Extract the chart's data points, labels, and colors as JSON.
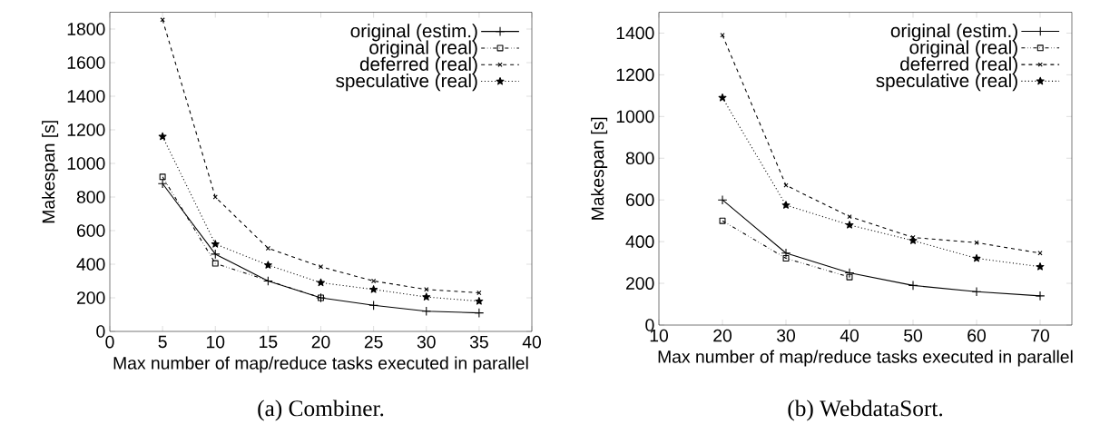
{
  "chart_data": [
    {
      "type": "line",
      "xlabel": "Max number of map/reduce tasks executed in parallel",
      "ylabel": "Makespan [s]",
      "annotations": [
        "(a) Combiner."
      ],
      "xlim": [
        0,
        40
      ],
      "ylim": [
        0,
        1900
      ],
      "xticks": [
        0,
        5,
        10,
        15,
        20,
        25,
        30,
        35,
        40
      ],
      "yticks": [
        0,
        200,
        400,
        600,
        800,
        1000,
        1200,
        1400,
        1600,
        1800
      ],
      "legend": "top right",
      "grid": false,
      "series": [
        {
          "name": "original (estim.)",
          "color": "#000000",
          "marker": "plus",
          "line_style": "solid",
          "x": [
            5,
            10,
            15,
            20,
            25,
            30,
            35
          ],
          "values": [
            880,
            460,
            300,
            200,
            155,
            120,
            110
          ]
        },
        {
          "name": "original (real)",
          "color": "#000000",
          "marker": "square",
          "line_style": "dashdotdotted",
          "x": [
            5,
            10,
            20
          ],
          "values": [
            920,
            405,
            200
          ]
        },
        {
          "name": "deferred (real)",
          "color": "#000000",
          "marker": "cross",
          "line_style": "dashed",
          "x": [
            5,
            10,
            15,
            20,
            25,
            30,
            35
          ],
          "values": [
            1855,
            800,
            495,
            385,
            300,
            250,
            230
          ]
        },
        {
          "name": "speculative (real)",
          "color": "#000000",
          "marker": "star",
          "line_style": "dotted",
          "x": [
            5,
            10,
            15,
            20,
            25,
            30,
            35
          ],
          "values": [
            1160,
            520,
            395,
            290,
            250,
            205,
            180
          ]
        }
      ]
    },
    {
      "type": "line",
      "xlabel": "Max number of map/reduce tasks executed in parallel",
      "ylabel": "Makespan [s]",
      "annotations": [
        "(b) WebdataSort."
      ],
      "xlim": [
        10,
        75
      ],
      "ylim": [
        0,
        1500
      ],
      "xticks": [
        10,
        20,
        30,
        40,
        50,
        60,
        70
      ],
      "yticks": [
        0,
        200,
        400,
        600,
        800,
        1000,
        1200,
        1400
      ],
      "legend": "top right",
      "grid": false,
      "series": [
        {
          "name": "original (estim.)",
          "color": "#000000",
          "marker": "plus",
          "line_style": "solid",
          "x": [
            20,
            30,
            40,
            50,
            60,
            70
          ],
          "values": [
            600,
            345,
            250,
            190,
            160,
            140
          ]
        },
        {
          "name": "original (real)",
          "color": "#000000",
          "marker": "square",
          "line_style": "dashdotdotted",
          "x": [
            20,
            30,
            40
          ],
          "values": [
            500,
            320,
            230
          ]
        },
        {
          "name": "deferred (real)",
          "color": "#000000",
          "marker": "cross",
          "line_style": "dashed",
          "x": [
            20,
            30,
            40,
            50,
            60,
            70
          ],
          "values": [
            1390,
            670,
            520,
            420,
            395,
            345
          ]
        },
        {
          "name": "speculative (real)",
          "color": "#000000",
          "marker": "star",
          "line_style": "dotted",
          "x": [
            20,
            30,
            40,
            50,
            60,
            70
          ],
          "values": [
            1090,
            575,
            480,
            405,
            320,
            280
          ]
        }
      ]
    }
  ]
}
